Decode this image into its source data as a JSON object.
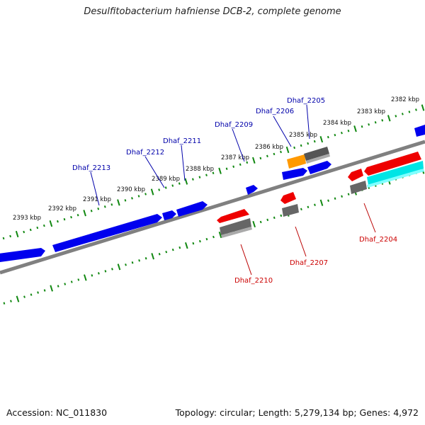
{
  "title": "Desulfitobacterium hafniense DCB-2, complete genome",
  "footer": {
    "accession": "Accession: NC_011830",
    "summary": "Topology: circular; Length: 5,279,134 bp; Genes: 4,972"
  },
  "colors": {
    "forward": "#0000ee",
    "reverse": "#ee0000",
    "rna": "#ff9900",
    "other": "#666666",
    "highlight": "#00e5e5",
    "tick": "#118811",
    "backbone": "#808080"
  },
  "scale_labels": [
    "2382 kbp",
    "2383 kbp",
    "2384 kbp",
    "2385 kbp",
    "2386 kbp",
    "2387 kbp",
    "2388 kbp",
    "2389 kbp",
    "2390 kbp",
    "2391 kbp",
    "2392 kbp",
    "2393 kbp"
  ],
  "forward_labels": [
    "Dhaf_2205",
    "Dhaf_2206",
    "Dhaf_2209",
    "Dhaf_2211",
    "Dhaf_2212",
    "Dhaf_2213"
  ],
  "reverse_labels": [
    "Dhaf_2204",
    "Dhaf_2207",
    "Dhaf_2210"
  ]
}
